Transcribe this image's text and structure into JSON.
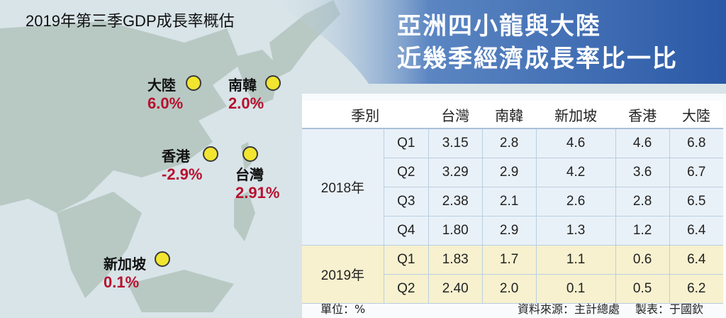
{
  "map_title": "2019年第三季GDP成長率概估",
  "headline": [
    "亞洲四小龍與大陸",
    "近幾季經濟成長率比一比"
  ],
  "countries": [
    {
      "name": "大陸",
      "rate": "6.0%"
    },
    {
      "name": "南韓",
      "rate": "2.0%"
    },
    {
      "name": "香港",
      "rate": "-2.9%"
    },
    {
      "name": "台灣",
      "rate": "2.91%"
    },
    {
      "name": "新加坡",
      "rate": "0.1%"
    }
  ],
  "colors": {
    "headline_band": "#2a58a6",
    "rate_text": "#b8102e",
    "dot": "#f2e530",
    "row_2018": "#e9f1f8",
    "row_2019": "#f7f1cf",
    "land": "#b8c9c4"
  },
  "chart_data": {
    "type": "table",
    "header": {
      "period": "季別",
      "columns": [
        "台灣",
        "南韓",
        "新加坡",
        "香港",
        "大陸"
      ]
    },
    "groups": [
      {
        "year": "2018年",
        "rows": [
          {
            "quarter": "Q1",
            "values": [
              "3.15",
              "2.8",
              "4.6",
              "4.6",
              "6.8"
            ]
          },
          {
            "quarter": "Q2",
            "values": [
              "3.29",
              "2.9",
              "4.2",
              "3.6",
              "6.7"
            ]
          },
          {
            "quarter": "Q3",
            "values": [
              "2.38",
              "2.1",
              "2.6",
              "2.8",
              "6.5"
            ]
          },
          {
            "quarter": "Q4",
            "values": [
              "1.80",
              "2.9",
              "1.3",
              "1.2",
              "6.4"
            ]
          }
        ]
      },
      {
        "year": "2019年",
        "rows": [
          {
            "quarter": "Q1",
            "values": [
              "1.83",
              "1.7",
              "1.1",
              "0.6",
              "6.4"
            ]
          },
          {
            "quarter": "Q2",
            "values": [
              "2.40",
              "2.0",
              "0.1",
              "0.5",
              "6.2"
            ]
          }
        ]
      }
    ]
  },
  "footer": {
    "unit": "單位：%",
    "source": "資料來源：主計總處",
    "maker": "製表：于國欽"
  }
}
